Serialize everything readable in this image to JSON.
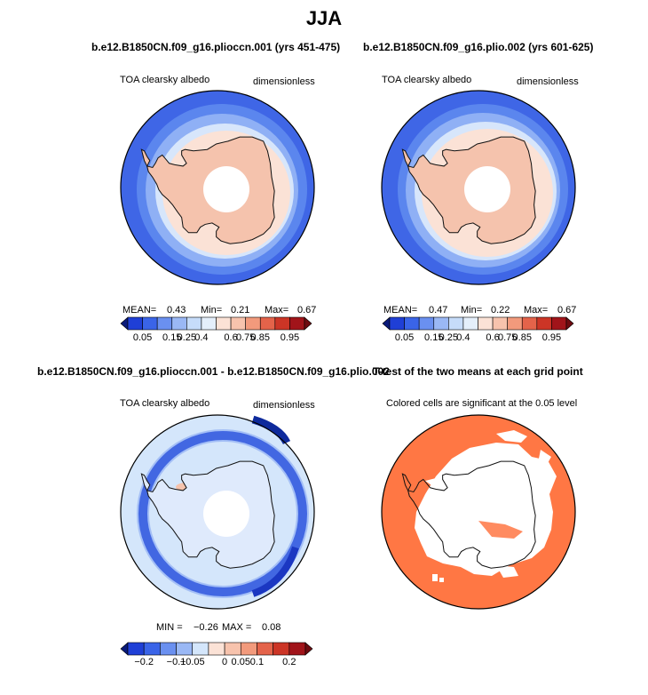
{
  "title": "JJA",
  "panels": [
    {
      "id": "p1",
      "title": "b.e12.B1850CN.f09_g16.plioccn.001 (yrs 451-475)",
      "left_label": "TOA clearsky albedo",
      "right_label": "dimensionless",
      "stats": {
        "mean_label": "MEAN=",
        "mean": "0.43",
        "min_label": "Min=",
        "min": "0.21",
        "max_label": "Max=",
        "max": "0.67"
      }
    },
    {
      "id": "p2",
      "title": "b.e12.B1850CN.f09_g16.plio.002 (yrs 601-625)",
      "left_label": "TOA clearsky albedo",
      "right_label": "dimensionless",
      "stats": {
        "mean_label": "MEAN=",
        "mean": "0.47",
        "min_label": "Min=",
        "min": "0.22",
        "max_label": "Max=",
        "max": "0.67"
      }
    },
    {
      "id": "p3",
      "title": "b.e12.B1850CN.f09_g16.plioccn.001 - b.e12.B1850CN.f09_g16.plio.002",
      "left_label": "TOA clearsky albedo",
      "right_label": "dimensionless",
      "stats": {
        "min_label": "MIN =",
        "min": "−0.26",
        "max_label": "MAX =",
        "max": "0.08"
      }
    },
    {
      "id": "p4",
      "title": "T-test of the two means at each grid point",
      "left_label": "Colored cells are significant at the 0.05 level"
    }
  ],
  "colorbar_abs": {
    "labels": [
      "0.05",
      "0.15",
      "0.25",
      "0.4",
      "0.6",
      "0.75",
      "0.85",
      "0.95"
    ],
    "colors": [
      "#0a1a7a",
      "#1f3fd6",
      "#3a64e8",
      "#6a90f0",
      "#9ab8f5",
      "#c6dcfa",
      "#e4effb",
      "#fbe2d6",
      "#f7c3ad",
      "#f29a7c",
      "#e4634a",
      "#cc3526",
      "#a1141a",
      "#6e0b10"
    ]
  },
  "colorbar_diff": {
    "labels": [
      "−0.2",
      "−0.1",
      "−0.05",
      "0",
      "0.05",
      "0.1",
      "0.2"
    ],
    "colors": [
      "#0a1a7a",
      "#1f3fd6",
      "#3a64e8",
      "#6a90f0",
      "#9ab8f5",
      "#d4e6fb",
      "#fbe2d6",
      "#f7c3ad",
      "#f29a7c",
      "#e4634a",
      "#cc3526",
      "#a1141a",
      "#6e0b10"
    ]
  },
  "chart_data": [
    {
      "type": "heatmap",
      "title": "b.e12.B1850CN.f09_g16.plioccn.001 (yrs 451-475)",
      "variable": "TOA clearsky albedo",
      "units": "dimensionless",
      "projection": "south polar stereographic",
      "mean": 0.43,
      "min": 0.21,
      "max": 0.67,
      "contour_levels": [
        0.05,
        0.15,
        0.25,
        0.4,
        0.6,
        0.75,
        0.85,
        0.95
      ]
    },
    {
      "type": "heatmap",
      "title": "b.e12.B1850CN.f09_g16.plio.002 (yrs 601-625)",
      "variable": "TOA clearsky albedo",
      "units": "dimensionless",
      "projection": "south polar stereographic",
      "mean": 0.47,
      "min": 0.22,
      "max": 0.67,
      "contour_levels": [
        0.05,
        0.15,
        0.25,
        0.4,
        0.6,
        0.75,
        0.85,
        0.95
      ]
    },
    {
      "type": "heatmap",
      "title": "b.e12.B1850CN.f09_g16.plioccn.001 - b.e12.B1850CN.f09_g16.plio.002",
      "variable": "TOA clearsky albedo",
      "units": "dimensionless",
      "projection": "south polar stereographic",
      "min": -0.26,
      "max": 0.08,
      "contour_levels": [
        -0.2,
        -0.1,
        -0.05,
        0,
        0.05,
        0.1,
        0.2
      ]
    },
    {
      "type": "heatmap",
      "title": "T-test of the two means at each grid point",
      "projection": "south polar stereographic",
      "significance_level": 0.05,
      "significant_color": "#ff7744"
    }
  ]
}
